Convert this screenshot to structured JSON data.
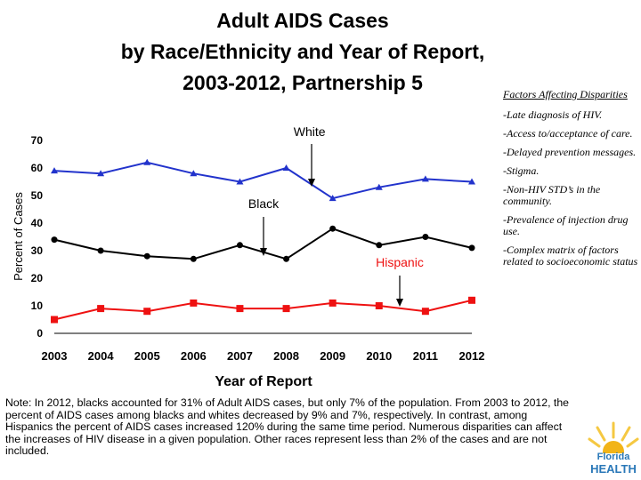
{
  "title_lines": [
    "Adult AIDS Cases",
    "by Race/Ethnicity and Year of Report,",
    "2003-2012, Partnership 5"
  ],
  "factors": {
    "heading": "Factors Affecting Disparities",
    "items": [
      "-Late diagnosis of HIV.",
      "-Access to/acceptance of care.",
      "-Delayed prevention messages.",
      "-Stigma.",
      "-Non-HIV STD’s in the community.",
      "-Prevalence of injection drug use.",
      "-Complex matrix of factors related to socioeconomic status"
    ]
  },
  "note": "Note:  In 2012, blacks accounted for 31% of Adult AIDS cases, but only 7% of the population. From 2003 to 2012, the percent of AIDS cases among blacks and whites decreased by 9% and 7%, respectively.  In contrast, among Hispanics the percent of AIDS cases increased 120% during the same time period.  Numerous disparities can affect the increases of HIV disease in a given population. Other races represent less than 2% of the cases and are not included.",
  "logo": {
    "line1": "Florida",
    "line2": "HEALTH"
  },
  "chart_data": {
    "type": "line",
    "title": "Adult AIDS Cases by Race/Ethnicity and Year of Report, 2003-2012, Partnership 5",
    "xlabel": "Year of Report",
    "ylabel": "Percent of Cases",
    "x": [
      2003,
      2004,
      2005,
      2006,
      2007,
      2008,
      2009,
      2010,
      2011,
      2012
    ],
    "xticks": [
      "2003",
      "2004",
      "2005",
      "2006",
      "2007",
      "2008",
      "2009",
      "2010",
      "2011",
      "2012"
    ],
    "ylim": [
      0,
      70
    ],
    "yticks": [
      0,
      10,
      20,
      30,
      40,
      50,
      60,
      70
    ],
    "grid": false,
    "series": [
      {
        "name": "White",
        "color": "#2233cc",
        "marker": "triangle",
        "values": [
          59,
          58,
          62,
          58,
          55,
          60,
          49,
          53,
          56,
          55
        ]
      },
      {
        "name": "Black",
        "color": "#000000",
        "marker": "circle",
        "values": [
          34,
          30,
          28,
          27,
          32,
          27,
          38,
          32,
          35,
          31
        ]
      },
      {
        "name": "Hispanic",
        "color": "#ee1111",
        "marker": "square",
        "values": [
          5,
          9,
          8,
          11,
          9,
          9,
          11,
          10,
          8,
          12
        ]
      }
    ],
    "annotations": [
      {
        "label": "White",
        "series": "White",
        "year": 2009,
        "color": "#000000"
      },
      {
        "label": "Black",
        "series": "Black",
        "year": 2007,
        "color": "#000000"
      },
      {
        "label": "Hispanic",
        "series": "Hispanic",
        "year": 2010,
        "color": "#ee1111"
      }
    ]
  }
}
